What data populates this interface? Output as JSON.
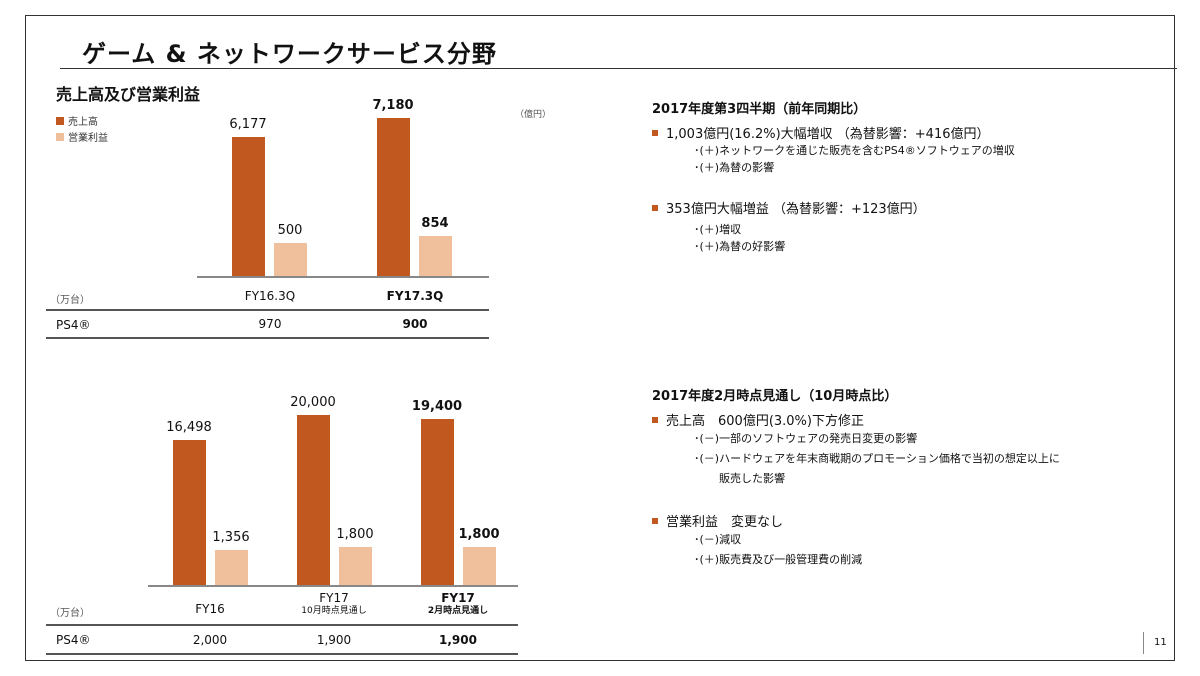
{
  "title": "ゲーム & ネットワークサービス分野",
  "page_number": "11",
  "colors": {
    "revenue": "#c0581f",
    "operating_income": "#f0c09c",
    "bullet": "#c0581f"
  },
  "chart_data": [
    {
      "type": "bar",
      "title": "売上高及び営業利益",
      "unit_label": "（億円）",
      "legend": [
        "売上高",
        "営業利益"
      ],
      "categories": [
        "FY16.3Q",
        "FY17.3Q"
      ],
      "series": [
        {
          "name": "売上高",
          "values": [
            6177,
            7180
          ],
          "labels": [
            "6,177",
            "7,180"
          ]
        },
        {
          "name": "営業利益",
          "values": [
            500,
            854
          ],
          "labels": [
            "500",
            "854"
          ]
        }
      ],
      "table": {
        "unit": "（万台）",
        "row_label": "PS4®",
        "values": [
          "970",
          "900"
        ]
      }
    },
    {
      "type": "bar",
      "categories": [
        "FY16",
        "FY17",
        "FY17"
      ],
      "category_sublabels": [
        "",
        "10月時点見通し",
        "2月時点見通し"
      ],
      "series": [
        {
          "name": "売上高",
          "values": [
            16498,
            20000,
            19400
          ],
          "labels": [
            "16,498",
            "20,000",
            "19,400"
          ]
        },
        {
          "name": "営業利益",
          "values": [
            1356,
            1800,
            1800
          ],
          "labels": [
            "1,356",
            "1,800",
            "1,800"
          ]
        }
      ],
      "table": {
        "unit": "（万台）",
        "row_label": "PS4®",
        "values": [
          "2,000",
          "1,900",
          "1,900"
        ]
      }
    }
  ],
  "right": {
    "q3": {
      "heading": "2017年度第3四半期（前年同期比）",
      "bullets": [
        {
          "text": "1,003億円(16.2%)大幅増収 （為替影響：+416億円）",
          "subs": [
            "･(＋)ネットワークを通じた販売を含むPS4®ソフトウェアの増収",
            "･(＋)為替の影響"
          ]
        },
        {
          "text": "353億円大幅増益 （為替影響：+123億円）",
          "subs": [
            "･(＋)増収",
            "･(＋)為替の好影響"
          ]
        }
      ]
    },
    "forecast": {
      "heading": "2017年度2月時点見通し（10月時点比）",
      "bullets": [
        {
          "text": "売上高　600億円(3.0%)下方修正",
          "subs": [
            "･(－)一部のソフトウェアの発売日変更の影響",
            "･(－)ハードウェアを年末商戦期のプロモーション価格で当初の想定以上に",
            "　販売した影響"
          ]
        },
        {
          "text": "営業利益　変更なし",
          "subs": [
            "･(－)減収",
            "･(＋)販売費及び一般管理費の削減"
          ]
        }
      ]
    }
  }
}
